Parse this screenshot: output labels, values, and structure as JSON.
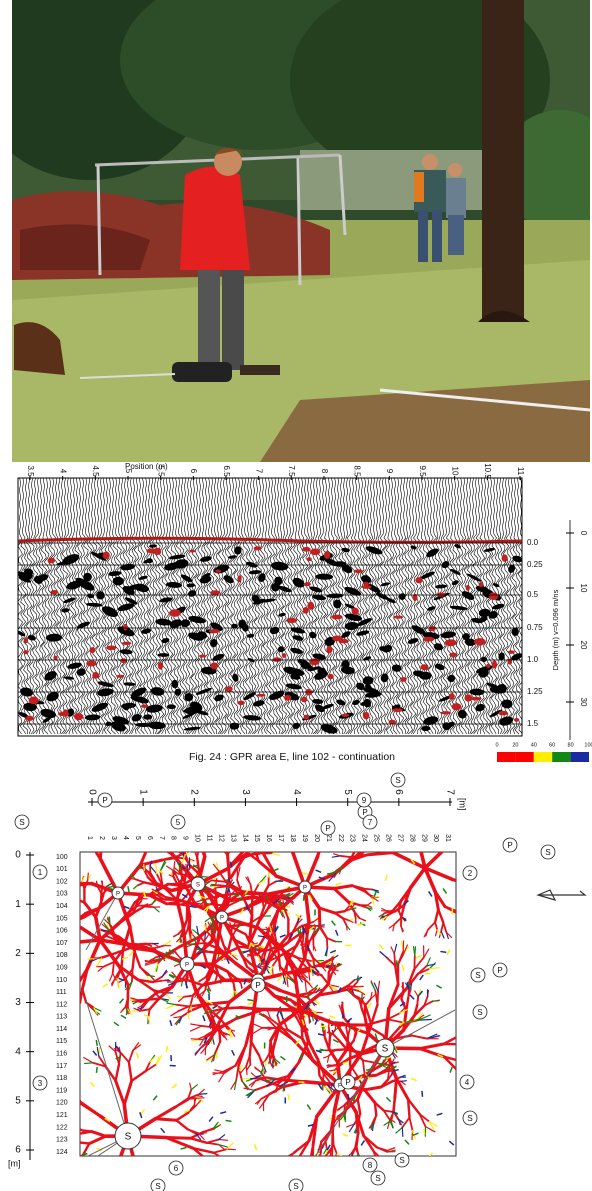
{
  "radargram": {
    "axis_title": "Position (m)",
    "x_ticks": [
      "3.5",
      "4",
      "4.5",
      "5",
      "5.5",
      "6",
      "6.5",
      "7",
      "7.5",
      "8",
      "8.5",
      "9",
      "9.5",
      "10",
      "10.5",
      "11"
    ],
    "depth_ticks": [
      "0.0",
      "0.25",
      "0.5",
      "0.75",
      "1.0",
      "1.25",
      "1.5"
    ],
    "depth_label": "Depth (m)   v=0.096 m/ns",
    "time_ticks": [
      "0",
      "10",
      "20",
      "30"
    ]
  },
  "caption": "Fig. 24 : GPR area E, line 102 - continuation",
  "map": {
    "x_ticks": [
      "0",
      "1",
      "2",
      "3",
      "4",
      "5",
      "6",
      "7"
    ],
    "x_unit": "[m]",
    "y_ticks": [
      "0",
      "1",
      "2",
      "3",
      "4",
      "5",
      "6"
    ],
    "y_unit": "[m]",
    "rows": [
      "100",
      "101",
      "102",
      "103",
      "104",
      "105",
      "106",
      "107",
      "108",
      "109",
      "110",
      "111",
      "112",
      "113",
      "114",
      "115",
      "116",
      "117",
      "118",
      "119",
      "120",
      "121",
      "122",
      "123",
      "124"
    ],
    "columns": [
      "1",
      "2",
      "3",
      "4",
      "5",
      "6",
      "7",
      "8",
      "9",
      "10",
      "11",
      "12",
      "13",
      "14",
      "15",
      "16",
      "17",
      "18",
      "19",
      "20",
      "21",
      "22",
      "23",
      "24",
      "25",
      "26",
      "27",
      "28",
      "29",
      "30",
      "31"
    ],
    "legend_ticks": [
      "0",
      "20",
      "40",
      "60",
      "80",
      "100"
    ],
    "markers": [
      "S",
      "S",
      "S",
      "S",
      "S",
      "S",
      "S",
      "S",
      "S",
      "S",
      "P",
      "P",
      "P",
      "P",
      "P",
      "P",
      "P",
      "1",
      "2",
      "3",
      "4",
      "5",
      "6",
      "7",
      "8",
      "9"
    ],
    "nodes": [
      "P",
      "S",
      "P",
      "P",
      "P",
      "P",
      "S",
      "P",
      "S"
    ]
  }
}
